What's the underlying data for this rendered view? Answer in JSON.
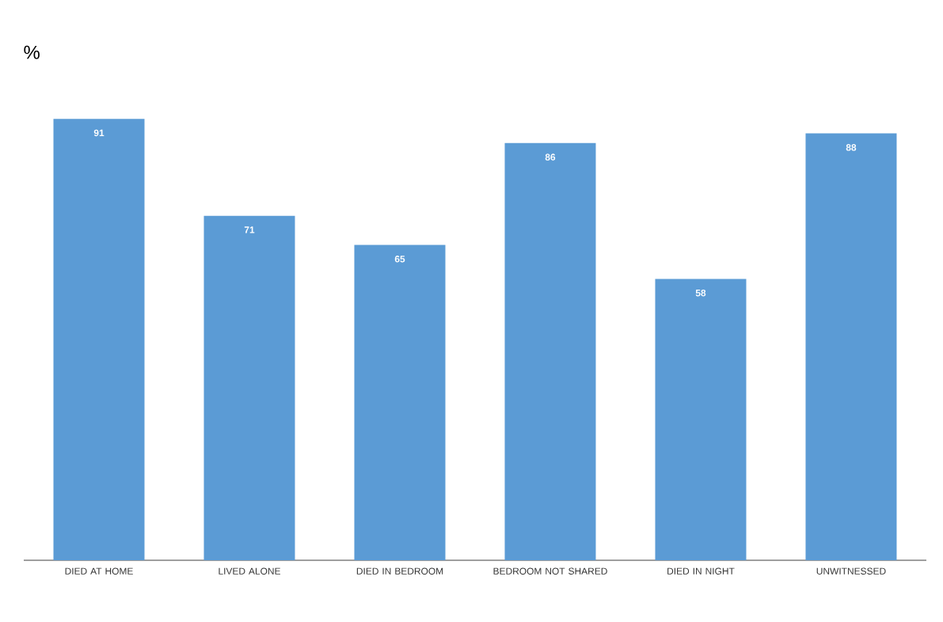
{
  "chart_data": {
    "type": "bar",
    "ylabel": "%",
    "categories": [
      "DIED AT HOME",
      "LIVED ALONE",
      "DIED IN BEDROOM",
      "BEDROOM NOT SHARED",
      "DIED IN NIGHT",
      "UNWITNESSED"
    ],
    "values": [
      91,
      71,
      65,
      86,
      58,
      88
    ],
    "color": "#5b9bd5",
    "data_labels": true,
    "tick_labels": "x"
  }
}
